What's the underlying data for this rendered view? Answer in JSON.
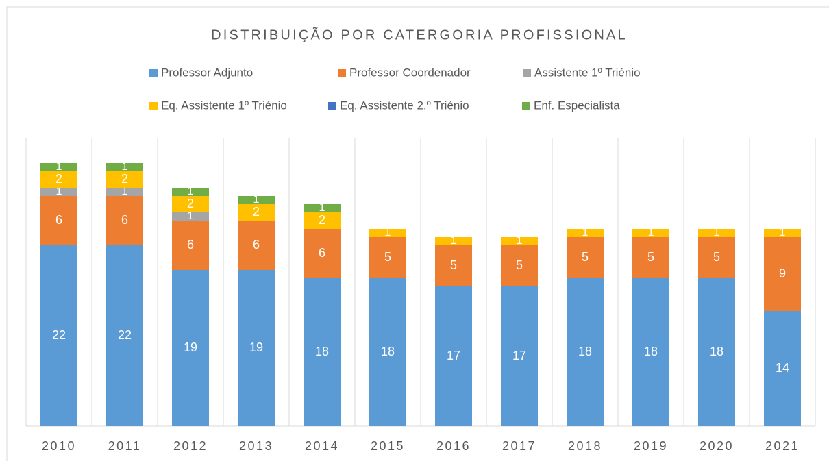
{
  "chart_data": {
    "type": "stacked_bar",
    "title": "DISTRIBUIÇÃO POR CATERGORIA PROFISSIONAL",
    "categories": [
      "2010",
      "2011",
      "2012",
      "2013",
      "2014",
      "2015",
      "2016",
      "2017",
      "2018",
      "2019",
      "2020",
      "2021"
    ],
    "series": [
      {
        "name": "Professor Adjunto",
        "color": "#5b9bd5",
        "values": [
          22,
          22,
          19,
          19,
          18,
          18,
          17,
          17,
          18,
          18,
          18,
          14
        ]
      },
      {
        "name": "Professor Coordenador",
        "color": "#ed7d31",
        "values": [
          6,
          6,
          6,
          6,
          6,
          5,
          5,
          5,
          5,
          5,
          5,
          9
        ]
      },
      {
        "name": "Assistente 1º Triénio",
        "color": "#a5a5a5",
        "values": [
          1,
          1,
          1,
          null,
          null,
          null,
          null,
          null,
          null,
          null,
          null,
          null
        ]
      },
      {
        "name": "Eq. Assistente 1º Triénio",
        "color": "#ffc000",
        "values": [
          2,
          2,
          2,
          2,
          2,
          1,
          1,
          1,
          1,
          1,
          1,
          1
        ]
      },
      {
        "name": "Eq. Assistente 2.º Triénio",
        "color": "#4472c4",
        "values": [
          null,
          null,
          null,
          null,
          null,
          null,
          null,
          null,
          null,
          null,
          null,
          null
        ]
      },
      {
        "name": "Enf. Especialista",
        "color": "#70ad47",
        "values": [
          1,
          1,
          1,
          1,
          1,
          null,
          null,
          null,
          null,
          null,
          null,
          null
        ]
      }
    ],
    "ylim": [
      0,
      35
    ]
  }
}
